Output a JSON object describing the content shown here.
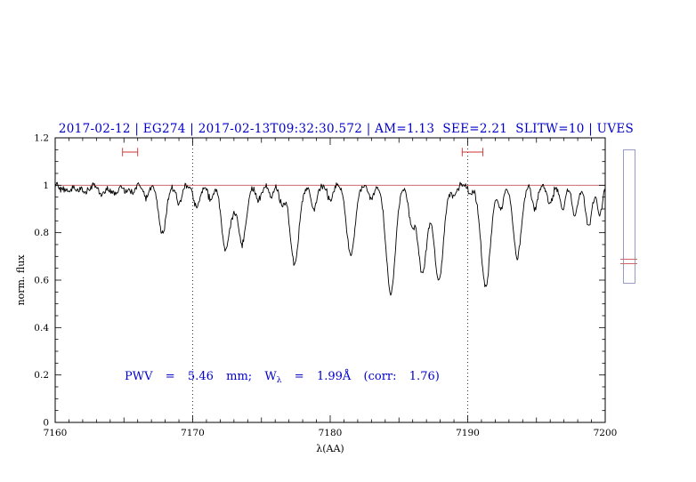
{
  "figure": {
    "background": "#ffffff"
  },
  "chart_data": {
    "type": "line",
    "title": "2017-02-12 | EG274 | 2017-02-13T09:32:30.572 | AM=1.13  SEE=2.21  SLITW=10 | UVES",
    "title_color": "#0000cc",
    "xlabel": "λ(AA)",
    "ylabel": "norm. flux",
    "xlim": [
      7160,
      7200
    ],
    "ylim": [
      0,
      1.2
    ],
    "x_major_ticks": [
      7160,
      7170,
      7180,
      7190,
      7200
    ],
    "x_tick_labels": [
      "7160",
      "7170",
      "7180",
      "7190",
      "7200"
    ],
    "y_major_ticks": [
      0,
      0.2,
      0.4,
      0.6,
      0.8,
      1,
      1.2
    ],
    "y_tick_labels": [
      "0",
      "0.2",
      "0.4",
      "0.6",
      "0.8",
      "1",
      "1.2"
    ],
    "x_minor_step": 1,
    "y_minor_step": 0.05,
    "grid": "off",
    "legend": "none",
    "dotted_vlines": [
      7170,
      7190
    ],
    "continuum_line": {
      "y": 1.0,
      "color": "#cc5555"
    },
    "spectrum": {
      "color": "#000000",
      "continuum": 1.0,
      "noise_sigma": 0.007,
      "sample_step": 0.05,
      "absorption_lines": [
        [
          7160.5,
          0.02,
          0.4
        ],
        [
          7161.0,
          0.025,
          0.5
        ],
        [
          7161.7,
          0.02,
          0.35
        ],
        [
          7162.2,
          0.03,
          0.45
        ],
        [
          7163.4,
          0.04,
          0.5
        ],
        [
          7164.0,
          0.02,
          0.35
        ],
        [
          7164.4,
          0.035,
          0.4
        ],
        [
          7165.1,
          0.025,
          0.4
        ],
        [
          7165.6,
          0.03,
          0.4
        ],
        [
          7166.6,
          0.05,
          0.45
        ],
        [
          7167.8,
          0.2,
          0.65
        ],
        [
          7169.0,
          0.07,
          0.5
        ],
        [
          7170.3,
          0.09,
          0.55
        ],
        [
          7171.3,
          0.06,
          0.45
        ],
        [
          7172.4,
          0.28,
          0.7
        ],
        [
          7173.0,
          0.05,
          0.4
        ],
        [
          7173.6,
          0.25,
          0.7
        ],
        [
          7174.8,
          0.06,
          0.45
        ],
        [
          7175.7,
          0.05,
          0.4
        ],
        [
          7176.5,
          0.08,
          0.45
        ],
        [
          7177.4,
          0.33,
          0.75
        ],
        [
          7178.8,
          0.1,
          0.5
        ],
        [
          7180.0,
          0.06,
          0.45
        ],
        [
          7181.5,
          0.3,
          0.7
        ],
        [
          7183.0,
          0.06,
          0.4
        ],
        [
          7184.4,
          0.46,
          0.8
        ],
        [
          7185.9,
          0.15,
          0.5
        ],
        [
          7186.7,
          0.37,
          0.8
        ],
        [
          7187.9,
          0.4,
          0.8
        ],
        [
          7189.0,
          0.05,
          0.4
        ],
        [
          7190.2,
          0.04,
          0.4
        ],
        [
          7191.3,
          0.43,
          0.8
        ],
        [
          7192.4,
          0.1,
          0.45
        ],
        [
          7193.6,
          0.3,
          0.7
        ],
        [
          7194.9,
          0.1,
          0.45
        ],
        [
          7196.0,
          0.08,
          0.45
        ],
        [
          7196.9,
          0.1,
          0.45
        ],
        [
          7197.8,
          0.13,
          0.5
        ],
        [
          7198.8,
          0.17,
          0.55
        ],
        [
          7199.6,
          0.12,
          0.45
        ]
      ]
    },
    "band_markers": {
      "color": "#cc3333",
      "y": 1.14,
      "cap_halfheight": 0.018,
      "ranges": [
        [
          7164.9,
          7166.0
        ],
        [
          7189.6,
          7191.1
        ]
      ]
    },
    "annotation": {
      "color": "#0000cc",
      "prefix": "PWV  =  5.46  mm;  W",
      "sub": "λ",
      "suffix": "  =  1.99Å  (corr:  1.76)"
    }
  },
  "side_widget": {
    "border_color": "#9999cc",
    "line_color": "#cc6666"
  }
}
